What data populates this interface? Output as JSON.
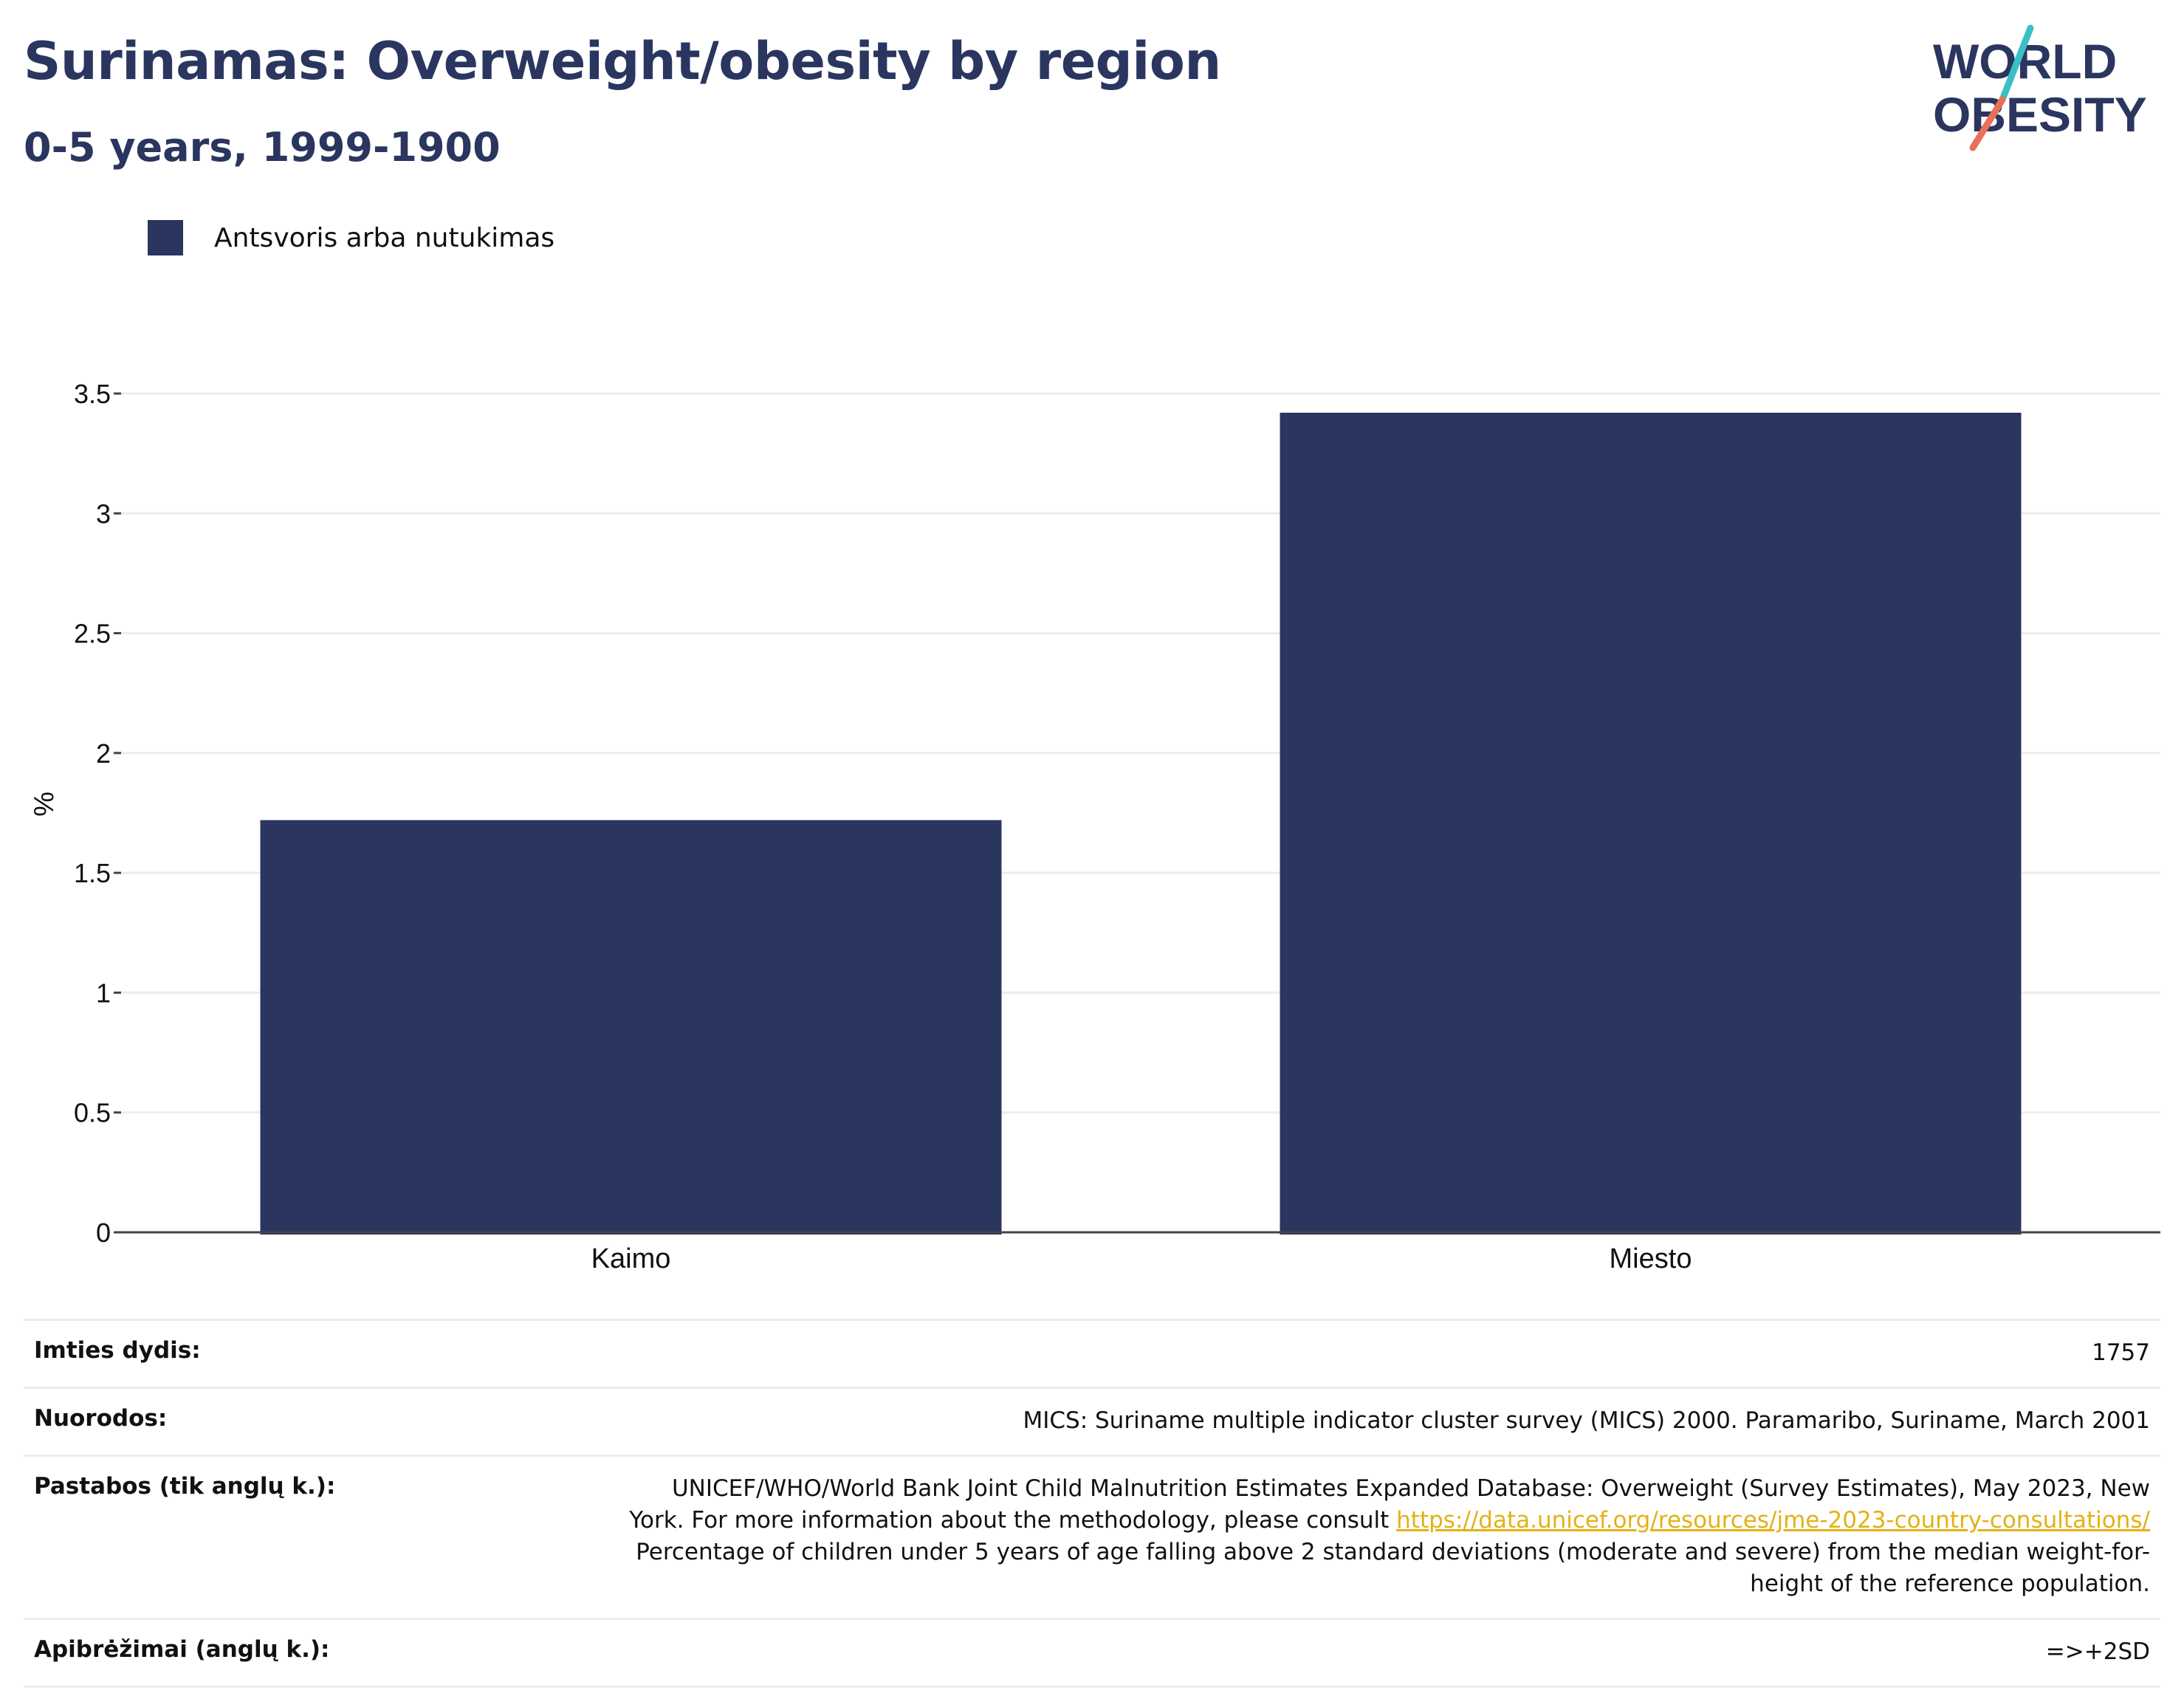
{
  "header": {
    "title": "Surinamas: Overweight/obesity by region",
    "subtitle": "0-5 years, 1999-1900"
  },
  "logo": {
    "line1": "WORLD",
    "line2": "OBESITY",
    "colors": {
      "text": "#2a365f",
      "slash_top": "#3bbfc4",
      "slash_bottom": "#e8705a"
    }
  },
  "legend": {
    "items": [
      {
        "label": "Antsvoris arba nutukimas",
        "color": "#2a365f"
      }
    ]
  },
  "chart_data": {
    "type": "bar",
    "categories": [
      "Kaimo",
      "Miesto"
    ],
    "series": [
      {
        "name": "Antsvoris arba nutukimas",
        "values": [
          1.72,
          3.42
        ],
        "color": "#2a365f"
      }
    ],
    "ylabel": "%",
    "ylim": [
      0,
      3.5
    ],
    "yticks": [
      0,
      0.5,
      1,
      1.5,
      2,
      2.5,
      3,
      3.5
    ],
    "ytick_labels": [
      "0",
      "0.5",
      "1",
      "1.5",
      "2",
      "2.5",
      "3",
      "3.5"
    ],
    "grid": true,
    "legend_position": "top-left"
  },
  "info": {
    "sample_size_label": "Imties dydis:",
    "sample_size_value": "1757",
    "references_label": "Nuorodos:",
    "references_value": "MICS: Suriname multiple indicator cluster survey (MICS) 2000. Paramaribo, Suriname, March 2001",
    "notes_label": "Pastabos (tik anglų k.):",
    "notes_line1": "UNICEF/WHO/World Bank Joint Child Malnutrition Estimates Expanded Database: Overweight (Survey Estimates), May 2023, New",
    "notes_line2": "York. For more information about the methodology, please consult",
    "notes_link": "https://data.unicef.org/resources/jme-2023-country-consultations/",
    "notes_line3": "Percentage of children under 5 years of age falling above 2 standard deviations (moderate and severe) from the median weight-for-",
    "notes_line4": "height of the reference population.",
    "definitions_label": "Apibrėžimai (anglų k.):",
    "definitions_value": "=>+2SD"
  }
}
